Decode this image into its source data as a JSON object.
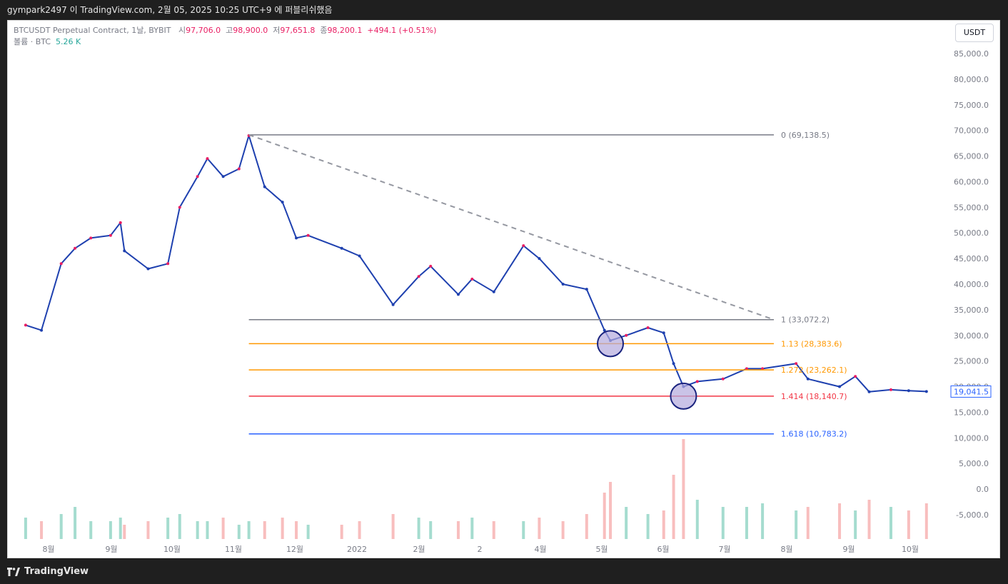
{
  "header": {
    "title": "gympark2497 이 TradingView.com, 2월 05, 2025 10:25 UTC+9 에 퍼블리쉬했음"
  },
  "legend": {
    "symbol": "BTCUSDT Perpetual Contract, 1날, BYBIT",
    "open_label": "시",
    "open": "97,706.0",
    "high_label": "고",
    "high": "98,900.0",
    "low_label": "저",
    "low": "97,651.8",
    "close_label": "종",
    "close": "98,200.1",
    "change": "+494.1 (+0.51%)",
    "volume_label": "볼륨 · BTC",
    "volume": "5.26 K"
  },
  "currency_button": "USDT",
  "footer": {
    "brand": "TradingView"
  },
  "colors": {
    "line_gray": "#787b86",
    "orange": "#ff9800",
    "red": "#f23645",
    "blue": "#2962ff",
    "candle": "#1e40af",
    "candle_up": "#e91e63",
    "circle_fill": "#b3a9dd",
    "circle_stroke": "#1a237e",
    "trend": "#9598a1",
    "price_box": "#2962ff"
  },
  "chart_data": {
    "type": "line",
    "series": [
      {
        "name": "BTCUSDT",
        "x": [
          "2021-07-20",
          "2021-07-28",
          "2021-08-07",
          "2021-08-14",
          "2021-08-22",
          "2021-09-01",
          "2021-09-06",
          "2021-09-08",
          "2021-09-20",
          "2021-09-30",
          "2021-10-06",
          "2021-10-15",
          "2021-10-20",
          "2021-10-28",
          "2021-11-05",
          "2021-11-10",
          "2021-11-18",
          "2021-11-27",
          "2021-12-04",
          "2021-12-10",
          "2021-12-27",
          "2022-01-05",
          "2022-01-22",
          "2022-02-04",
          "2022-02-10",
          "2022-02-24",
          "2022-03-03",
          "2022-03-14",
          "2022-03-29",
          "2022-04-06",
          "2022-04-18",
          "2022-04-30",
          "2022-05-09",
          "2022-05-12",
          "2022-05-20",
          "2022-05-31",
          "2022-06-08",
          "2022-06-13",
          "2022-06-18",
          "2022-06-25",
          "2022-07-08",
          "2022-07-20",
          "2022-07-28",
          "2022-08-14",
          "2022-08-20",
          "2022-09-05",
          "2022-09-13",
          "2022-09-20",
          "2022-10-01",
          "2022-10-10",
          "2022-10-19"
        ],
        "y": [
          32000,
          31000,
          44000,
          47000,
          49000,
          49500,
          52000,
          46500,
          43000,
          44000,
          55000,
          61000,
          64500,
          61000,
          62500,
          69000,
          59000,
          56000,
          49000,
          49500,
          47000,
          45500,
          36000,
          41500,
          43500,
          38000,
          41000,
          38500,
          47500,
          45000,
          40000,
          39000,
          31000,
          29000,
          30000,
          31500,
          30500,
          24500,
          20000,
          21000,
          21500,
          23500,
          23500,
          24500,
          21500,
          20000,
          22000,
          19000,
          19400,
          19200,
          19041.5
        ]
      },
      {
        "name": "Volume",
        "unit": "BTC",
        "values": [
          6,
          5,
          7,
          9,
          5,
          5,
          6,
          4,
          5,
          6,
          7,
          5,
          5,
          6,
          4,
          5,
          5,
          6,
          5,
          4,
          4,
          5,
          7,
          6,
          5,
          5,
          6,
          5,
          5,
          6,
          5,
          7,
          13,
          16,
          9,
          7,
          8,
          18,
          28,
          11,
          9,
          9,
          10,
          8,
          9,
          10,
          8,
          11,
          9,
          8,
          10
        ]
      }
    ],
    "y_axis": {
      "ticks": [
        "85,000.0",
        "80,000.0",
        "75,000.0",
        "70,000.0",
        "65,000.0",
        "60,000.0",
        "55,000.0",
        "50,000.0",
        "45,000.0",
        "40,000.0",
        "35,000.0",
        "30,000.0",
        "25,000.0",
        "20,000.0",
        "15,000.0",
        "10,000.0",
        "5,000.0",
        "0.0",
        "-5,000.0"
      ],
      "range": [
        -10000,
        90000
      ]
    },
    "x_axis": {
      "ticks": [
        "8월",
        "9월",
        "10월",
        "11월",
        "12월",
        "2022",
        "2월",
        "2",
        "4월",
        "5월",
        "6월",
        "7월",
        "8월",
        "9월",
        "10월"
      ]
    },
    "last_price": "19,041.5",
    "fib_levels": [
      {
        "label": "0 (69,138.5)",
        "value": 69138.5,
        "color": "line_gray"
      },
      {
        "label": "1 (33,072.2)",
        "value": 33072.2,
        "color": "line_gray"
      },
      {
        "label": "1.13 (28,383.6)",
        "value": 28383.6,
        "color": "orange"
      },
      {
        "label": "1.272 (23,262.1)",
        "value": 23262.1,
        "color": "orange"
      },
      {
        "label": "1.414 (18,140.7)",
        "value": 18140.7,
        "color": "red"
      },
      {
        "label": "1.618 (10,783.2)",
        "value": 10783.2,
        "color": "blue"
      }
    ],
    "trendline": {
      "from": [
        "2021-11-10",
        69138.5
      ],
      "to": [
        "2022-08-10",
        33072.2
      ],
      "style": "dashed"
    },
    "markers": [
      {
        "type": "circle",
        "x": "2022-05-12",
        "y": 28383.6
      },
      {
        "type": "circle",
        "x": "2022-06-18",
        "y": 18140.7
      }
    ],
    "grid": false,
    "legend_position": "top-left"
  }
}
